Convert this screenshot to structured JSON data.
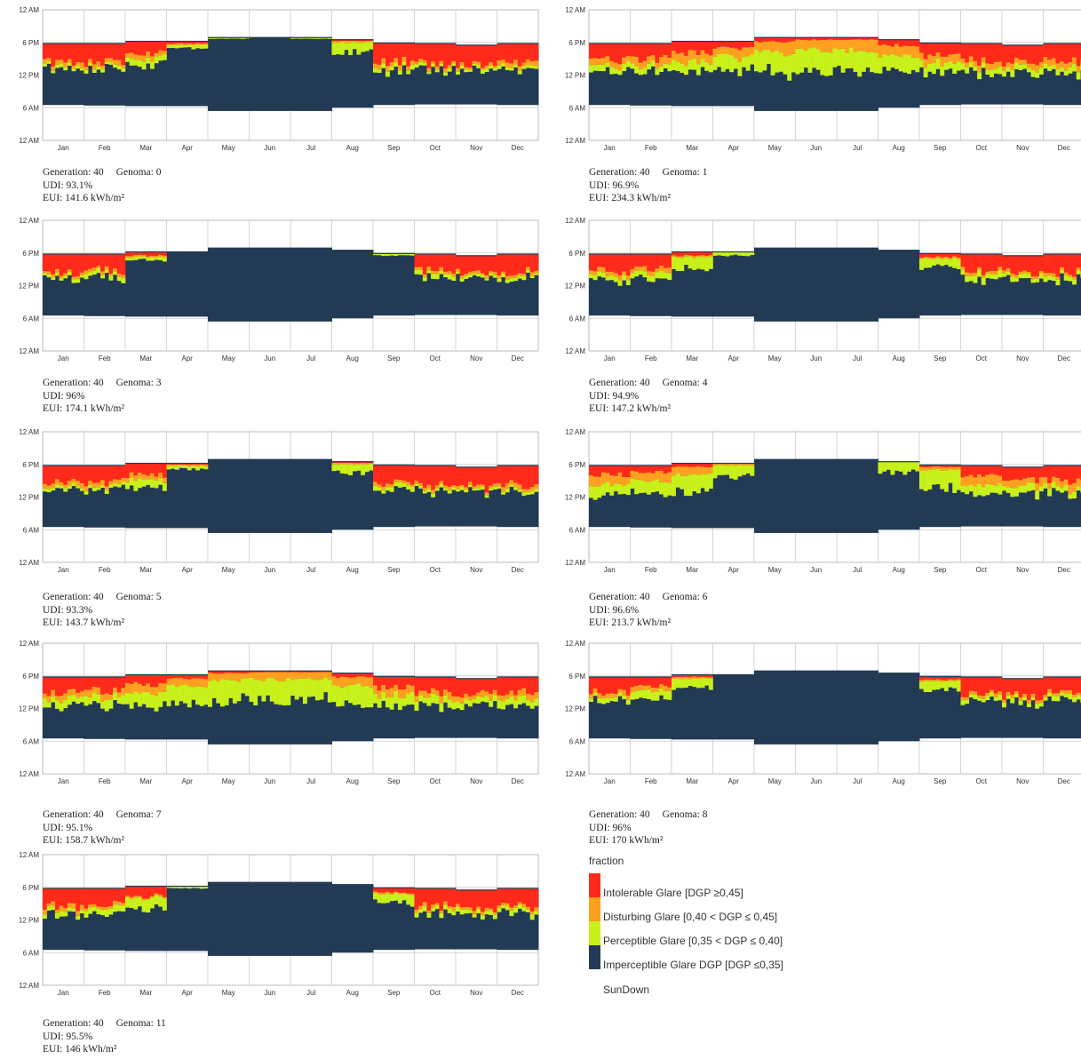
{
  "chart_data": [
    {
      "type": "heatmap",
      "generation_label": "Generation: 40",
      "genoma_label": "Genoma: 0",
      "udi_label": "UDI: 93.1%",
      "eui_label": "EUI: 141.6 kWh/m²",
      "y_ticks": [
        "12 AM",
        "6 PM",
        "12 PM",
        "6 AM",
        "12 AM"
      ],
      "x_ticks": [
        "Jan",
        "Feb",
        "Mar",
        "Apr",
        "May",
        "Jun",
        "Jul",
        "Aug",
        "Sep",
        "Oct",
        "Nov",
        "Dec"
      ],
      "glare_profile": {
        "intolerable": [
          0.6,
          0.6,
          0.35,
          0.05,
          0,
          0,
          0,
          0.02,
          0.6,
          0.7,
          0.7,
          0.65
        ],
        "disturbing": [
          0.15,
          0.15,
          0.15,
          0.05,
          0,
          0,
          0,
          0.05,
          0.15,
          0.1,
          0.1,
          0.15
        ],
        "perceptible": [
          0.1,
          0.1,
          0.2,
          0.1,
          0.02,
          0,
          0.02,
          0.3,
          0.15,
          0.1,
          0.1,
          0.1
        ]
      }
    },
    {
      "type": "heatmap",
      "generation_label": "Generation: 40",
      "genoma_label": "Genoma: 1",
      "udi_label": "UDI: 96.9%",
      "eui_label": "EUI: 234.3 kWh/m²",
      "y_ticks": [
        "12 AM",
        "6 PM",
        "12 PM",
        "6 AM",
        "12 AM"
      ],
      "x_ticks": [
        "Jan",
        "Feb",
        "Mar",
        "Apr",
        "May",
        "Jun",
        "Jul",
        "Aug",
        "Sep",
        "Oct",
        "Nov",
        "Dec"
      ],
      "glare_profile": {
        "intolerable": [
          0.55,
          0.5,
          0.35,
          0.2,
          0.1,
          0.05,
          0.05,
          0.15,
          0.4,
          0.6,
          0.6,
          0.6
        ],
        "disturbing": [
          0.2,
          0.25,
          0.3,
          0.3,
          0.3,
          0.3,
          0.3,
          0.3,
          0.25,
          0.2,
          0.2,
          0.2
        ],
        "perceptible": [
          0.2,
          0.2,
          0.3,
          0.45,
          0.55,
          0.6,
          0.6,
          0.5,
          0.3,
          0.2,
          0.2,
          0.2
        ]
      }
    },
    {
      "type": "heatmap",
      "generation_label": "Generation: 40",
      "genoma_label": "Genoma: 3",
      "udi_label": "UDI: 96%",
      "eui_label": "EUI: 174.1 kWh/m²",
      "y_ticks": [
        "12 AM",
        "6 PM",
        "12 PM",
        "6 AM",
        "12 AM"
      ],
      "x_ticks": [
        "Jan",
        "Feb",
        "Mar",
        "Apr",
        "May",
        "Jun",
        "Jul",
        "Aug",
        "Sep",
        "Oct",
        "Nov",
        "Dec"
      ],
      "glare_profile": {
        "intolerable": [
          0.6,
          0.55,
          0.1,
          0,
          0,
          0,
          0,
          0,
          0,
          0.55,
          0.6,
          0.6
        ],
        "disturbing": [
          0.1,
          0.1,
          0.05,
          0,
          0,
          0,
          0,
          0,
          0,
          0.1,
          0.1,
          0.1
        ],
        "perceptible": [
          0.1,
          0.15,
          0.1,
          0,
          0,
          0,
          0,
          0,
          0.05,
          0.15,
          0.1,
          0.1
        ]
      }
    },
    {
      "type": "heatmap",
      "generation_label": "Generation: 40",
      "genoma_label": "Genoma: 4",
      "udi_label": "UDI: 94.9%",
      "eui_label": "EUI: 147.2 kWh/m²",
      "y_ticks": [
        "12 AM",
        "6 PM",
        "12 PM",
        "6 AM",
        "12 AM"
      ],
      "x_ticks": [
        "Jan",
        "Feb",
        "Mar",
        "Apr",
        "May",
        "Jun",
        "Jul",
        "Aug",
        "Sep",
        "Oct",
        "Nov",
        "Dec"
      ],
      "glare_profile": {
        "intolerable": [
          0.55,
          0.45,
          0.1,
          0,
          0,
          0,
          0,
          0,
          0.1,
          0.55,
          0.6,
          0.6
        ],
        "disturbing": [
          0.15,
          0.15,
          0.05,
          0,
          0,
          0,
          0,
          0,
          0.05,
          0.1,
          0.1,
          0.1
        ],
        "perceptible": [
          0.15,
          0.2,
          0.35,
          0.1,
          0,
          0,
          0,
          0,
          0.3,
          0.2,
          0.15,
          0.15
        ]
      }
    },
    {
      "type": "heatmap",
      "generation_label": "Generation: 40",
      "genoma_label": "Genoma: 5",
      "udi_label": "UDI: 93.3%",
      "eui_label": "EUI: 143.7 kWh/m²",
      "y_ticks": [
        "12 AM",
        "6 PM",
        "12 PM",
        "6 AM",
        "12 AM"
      ],
      "x_ticks": [
        "Jan",
        "Feb",
        "Mar",
        "Apr",
        "May",
        "Jun",
        "Jul",
        "Aug",
        "Sep",
        "Oct",
        "Nov",
        "Dec"
      ],
      "glare_profile": {
        "intolerable": [
          0.6,
          0.55,
          0.35,
          0.02,
          0,
          0,
          0,
          0.02,
          0.6,
          0.7,
          0.7,
          0.65
        ],
        "disturbing": [
          0.15,
          0.15,
          0.15,
          0.05,
          0,
          0,
          0,
          0.05,
          0.1,
          0.1,
          0.1,
          0.15
        ],
        "perceptible": [
          0.1,
          0.1,
          0.25,
          0.1,
          0,
          0,
          0,
          0.25,
          0.15,
          0.1,
          0.1,
          0.1
        ]
      }
    },
    {
      "type": "heatmap",
      "generation_label": "Generation: 40",
      "genoma_label": "Genoma: 6",
      "udi_label": "UDI: 96.6%",
      "eui_label": "EUI: 213.7 kWh/m²",
      "y_ticks": [
        "12 AM",
        "6 PM",
        "12 PM",
        "6 AM",
        "12 AM"
      ],
      "x_ticks": [
        "Jan",
        "Feb",
        "Mar",
        "Apr",
        "May",
        "Jun",
        "Jul",
        "Aug",
        "Sep",
        "Oct",
        "Nov",
        "Dec"
      ],
      "glare_profile": {
        "intolerable": [
          0.3,
          0.2,
          0.1,
          0,
          0,
          0,
          0,
          0,
          0.05,
          0.3,
          0.45,
          0.5
        ],
        "disturbing": [
          0.3,
          0.35,
          0.25,
          0.05,
          0,
          0,
          0,
          0,
          0.1,
          0.3,
          0.25,
          0.25
        ],
        "perceptible": [
          0.35,
          0.4,
          0.55,
          0.35,
          0,
          0,
          0,
          0.3,
          0.6,
          0.3,
          0.25,
          0.2
        ]
      }
    },
    {
      "type": "heatmap",
      "generation_label": "Generation: 40",
      "genoma_label": "Genoma: 7",
      "udi_label": "UDI: 95.1%",
      "eui_label": "EUI: 158.7 kWh/m²",
      "y_ticks": [
        "12 AM",
        "6 PM",
        "12 PM",
        "6 AM",
        "12 AM"
      ],
      "x_ticks": [
        "Jan",
        "Feb",
        "Mar",
        "Apr",
        "May",
        "Jun",
        "Jul",
        "Aug",
        "Sep",
        "Oct",
        "Nov",
        "Dec"
      ],
      "glare_profile": {
        "intolerable": [
          0.5,
          0.45,
          0.3,
          0.1,
          0.05,
          0.02,
          0.02,
          0.1,
          0.35,
          0.5,
          0.55,
          0.5
        ],
        "disturbing": [
          0.2,
          0.2,
          0.25,
          0.25,
          0.2,
          0.2,
          0.2,
          0.25,
          0.25,
          0.2,
          0.2,
          0.2
        ],
        "perceptible": [
          0.25,
          0.3,
          0.4,
          0.55,
          0.6,
          0.6,
          0.6,
          0.55,
          0.35,
          0.25,
          0.2,
          0.25
        ]
      }
    },
    {
      "type": "heatmap",
      "generation_label": "Generation: 40",
      "genoma_label": "Genoma: 8",
      "udi_label": "UDI: 96%",
      "eui_label": "EUI: 170 kWh/m²",
      "y_ticks": [
        "12 AM",
        "6 PM",
        "12 PM",
        "6 AM",
        "12 AM"
      ],
      "x_ticks": [
        "Jan",
        "Feb",
        "Mar",
        "Apr",
        "May",
        "Jun",
        "Jul",
        "Aug",
        "Sep",
        "Oct",
        "Nov",
        "Dec"
      ],
      "glare_profile": {
        "intolerable": [
          0.5,
          0.3,
          0.05,
          0,
          0,
          0,
          0,
          0,
          0.1,
          0.55,
          0.6,
          0.55
        ],
        "disturbing": [
          0.15,
          0.15,
          0.05,
          0,
          0,
          0,
          0,
          0,
          0.05,
          0.1,
          0.1,
          0.1
        ],
        "perceptible": [
          0.15,
          0.3,
          0.3,
          0,
          0,
          0,
          0,
          0,
          0.3,
          0.15,
          0.15,
          0.15
        ]
      }
    },
    {
      "type": "heatmap",
      "generation_label": "Generation: 40",
      "genoma_label": "Genoma: 11",
      "udi_label": "UDI: 95.5%",
      "eui_label": "EUI: 146 kWh/m²",
      "y_ticks": [
        "12 AM",
        "6 PM",
        "12 PM",
        "6 AM",
        "12 AM"
      ],
      "x_ticks": [
        "Jan",
        "Feb",
        "Mar",
        "Apr",
        "May",
        "Jun",
        "Jul",
        "Aug",
        "Sep",
        "Oct",
        "Nov",
        "Dec"
      ],
      "glare_profile": {
        "intolerable": [
          0.6,
          0.55,
          0.3,
          0,
          0,
          0,
          0,
          0,
          0.15,
          0.6,
          0.65,
          0.6
        ],
        "disturbing": [
          0.15,
          0.1,
          0.05,
          0,
          0,
          0,
          0,
          0,
          0.05,
          0.1,
          0.1,
          0.1
        ],
        "perceptible": [
          0.15,
          0.2,
          0.35,
          0.05,
          0,
          0,
          0,
          0,
          0.3,
          0.15,
          0.15,
          0.15
        ]
      }
    }
  ],
  "legend": {
    "title": "fraction",
    "items": [
      {
        "label": "Intolerable Glare [DGP ≥0,45]",
        "color": "#ff2a1a"
      },
      {
        "label": "Disturbing Glare [0,40 < DGP ≤ 0,45]",
        "color": "#ffa020"
      },
      {
        "label": "Perceptible Glare [0,35 < DGP ≤ 0,40]",
        "color": "#c8f01a"
      },
      {
        "label": "Imperceptible Glare DGP [DGP ≤0,35]",
        "color": "#233a55"
      }
    ],
    "sundown_label": "SunDown"
  },
  "colors": {
    "intolerable": "#ff2a1a",
    "disturbing": "#ffa020",
    "perceptible": "#c8f01a",
    "imperceptible": "#233a55",
    "sundown": "#ffffff"
  }
}
